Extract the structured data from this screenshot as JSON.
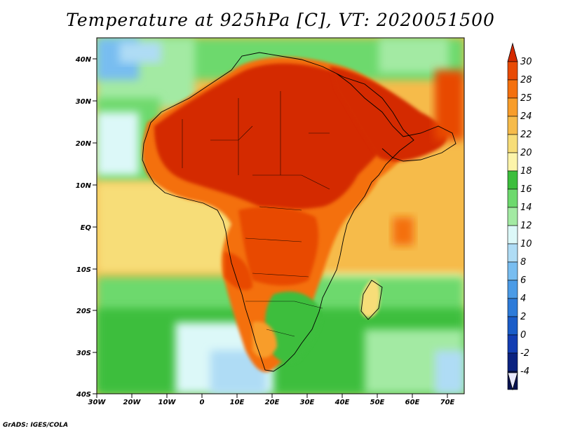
{
  "title": "Temperature at 925hPa [C], VT: 2020051500",
  "credit": "GrADS: IGES/COLA",
  "axes": {
    "lat_labels": [
      "40N",
      "30N",
      "20N",
      "10N",
      "EQ",
      "10S",
      "20S",
      "30S",
      "40S"
    ],
    "lon_labels": [
      "30W",
      "20W",
      "10W",
      "0",
      "10E",
      "20E",
      "30E",
      "40E",
      "50E",
      "60E",
      "70E"
    ]
  },
  "colorbar": {
    "labels": [
      "30",
      "28",
      "25",
      "24",
      "22",
      "20",
      "18",
      "16",
      "14",
      "12",
      "10",
      "8",
      "6",
      "4",
      "2",
      "0",
      "-2",
      "-4"
    ],
    "top_color": "#d42a00",
    "bottom_color": "#e6e6fa",
    "colors": [
      "#d42a00",
      "#e84a05",
      "#f4700e",
      "#f89d2a",
      "#f6bb4a",
      "#f7dd78",
      "#fcf4aa",
      "#3cbe3c",
      "#6dd96d",
      "#a3eaa3",
      "#dcf8f8",
      "#afdcf5",
      "#78bdf0",
      "#4b9be6",
      "#2d7bd9",
      "#1a5cc8",
      "#133db2",
      "#0b2280",
      "#061150"
    ]
  }
}
